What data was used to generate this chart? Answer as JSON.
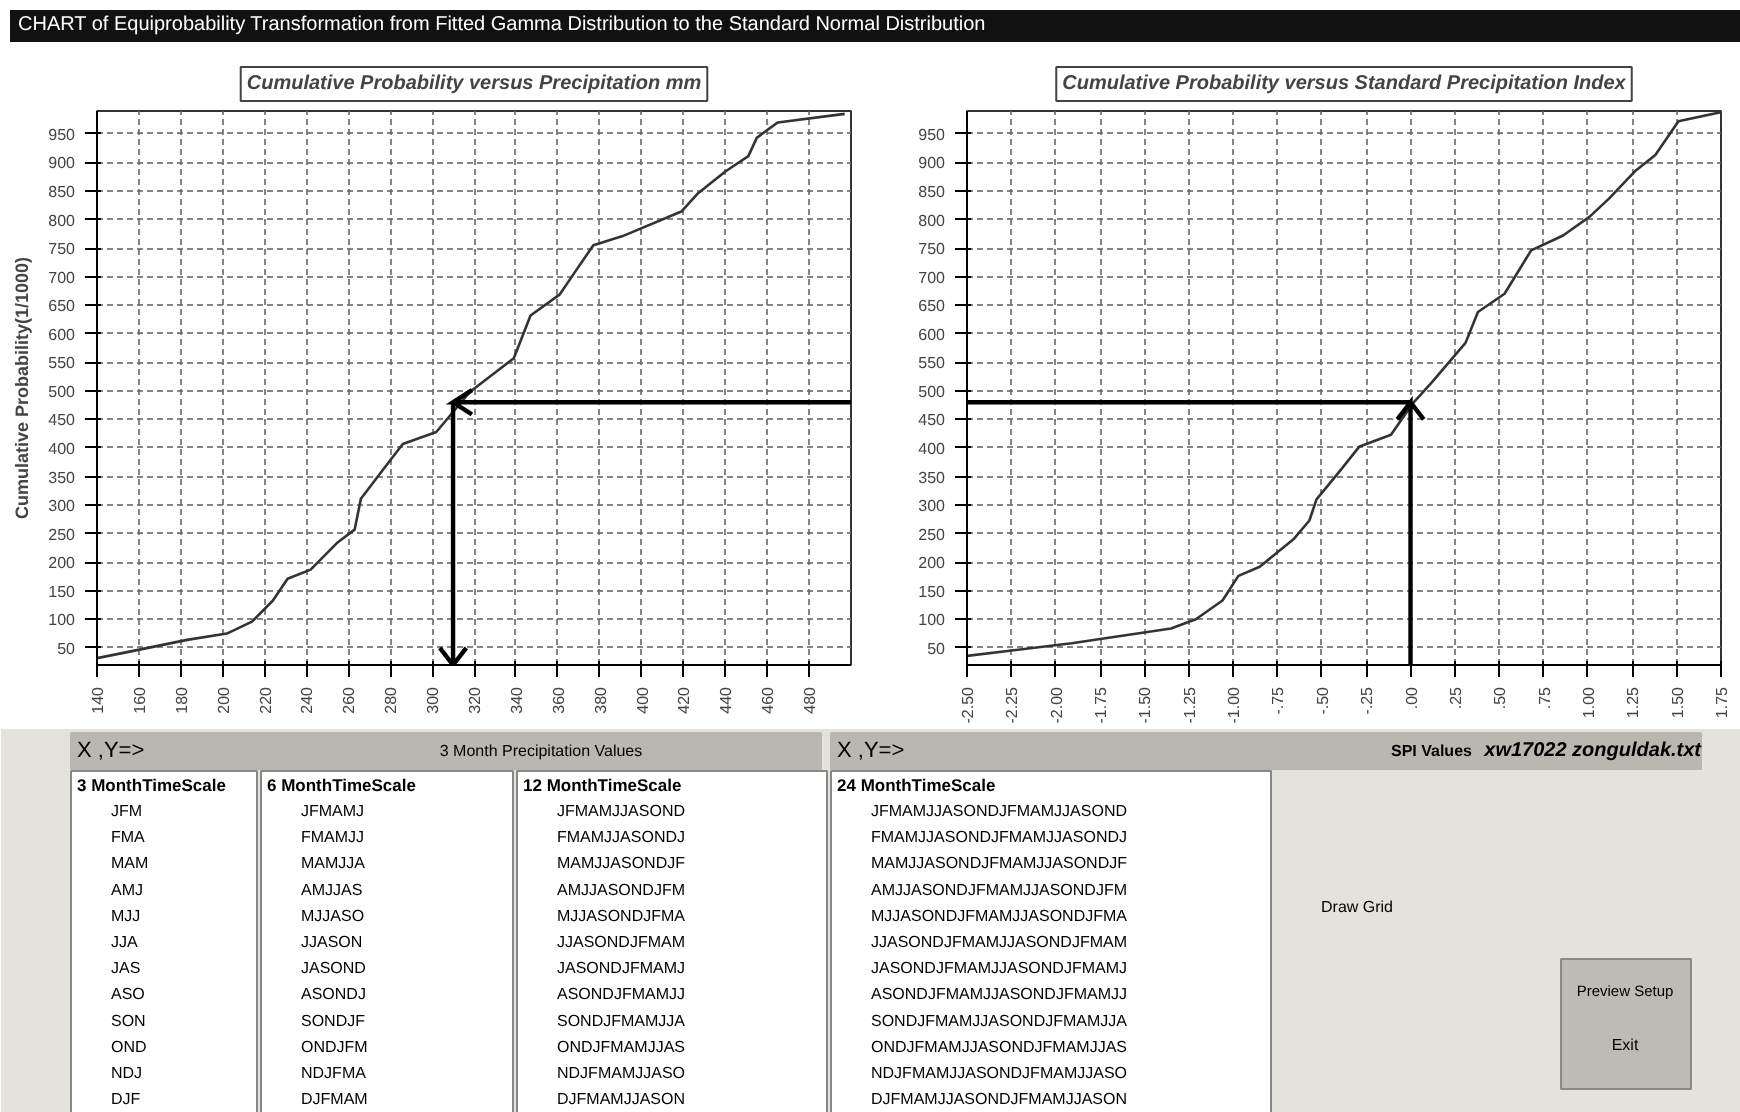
{
  "chart_data": [
    {
      "type": "line",
      "title": "CHART of Equiprobability Transformation from Fitted Gamma Distribution to the Standard Normal Distribution",
      "subtitle": "Cumulative Probability versus Precipitation mm",
      "ylabel": "Cumulative Probability(1/1000)",
      "color": "#333333",
      "grid": true,
      "x": [
        140,
        155,
        183,
        202,
        214,
        224,
        231,
        242,
        255,
        263,
        266,
        277,
        286,
        302,
        318,
        339,
        347,
        361,
        368,
        377,
        391,
        419,
        427,
        440,
        451,
        455,
        465,
        497
      ],
      "values": [
        32,
        43,
        64,
        75,
        96,
        133,
        171,
        187,
        235,
        257,
        311,
        364,
        407,
        428,
        498,
        557,
        632,
        669,
        707,
        755,
        771,
        814,
        846,
        884,
        911,
        943,
        970,
        985
      ],
      "xlim": [
        140,
        500
      ],
      "ylim": [
        20,
        990
      ],
      "xticks": [
        140,
        160,
        180,
        200,
        220,
        240,
        260,
        280,
        300,
        320,
        340,
        360,
        380,
        400,
        420,
        440,
        460,
        480
      ],
      "yticks": [
        50,
        100,
        150,
        200,
        250,
        300,
        350,
        400,
        450,
        500,
        550,
        600,
        650,
        700,
        750,
        800,
        850,
        900,
        950
      ],
      "ref_lines": [
        {
          "axis": "y",
          "value": 480
        },
        {
          "axis": "x",
          "value": 310
        }
      ]
    },
    {
      "type": "line",
      "title": "Cumulative Probability versus Standard Precipitation Index",
      "color": "#333333",
      "grid": true,
      "x": [
        -2.5,
        -1.91,
        -1.35,
        -1.21,
        -1.06,
        -0.97,
        -0.85,
        -0.66,
        -0.57,
        -0.53,
        -0.4,
        -0.29,
        -0.11,
        0.01,
        0.12,
        0.31,
        0.38,
        0.53,
        0.68,
        0.86,
        1.01,
        1.12,
        1.27,
        1.38,
        1.51,
        1.75
      ],
      "values": [
        36,
        58,
        84,
        100,
        133,
        176,
        192,
        240,
        273,
        310,
        359,
        402,
        423,
        477,
        515,
        584,
        638,
        670,
        746,
        772,
        805,
        837,
        886,
        913,
        972,
        988
      ],
      "xlim": [
        -2.5,
        1.75
      ],
      "ylim": [
        20,
        990
      ],
      "xticks": [
        {
          "value": -2.5,
          "label": "-2.50"
        },
        {
          "value": -2.25,
          "label": "-2.25"
        },
        {
          "value": -2.0,
          "label": "-2.00"
        },
        {
          "value": -1.75,
          "label": "-1.75"
        },
        {
          "value": -1.5,
          "label": "-1.50"
        },
        {
          "value": -1.25,
          "label": "-1.25"
        },
        {
          "value": -1.0,
          "label": "-1.00"
        },
        {
          "value": -0.75,
          "label": "-.75"
        },
        {
          "value": -0.5,
          "label": "-.50"
        },
        {
          "value": -0.25,
          "label": "-.25"
        },
        {
          "value": 0,
          "label": ".00"
        },
        {
          "value": 0.25,
          "label": ".25"
        },
        {
          "value": 0.5,
          "label": ".50"
        },
        {
          "value": 0.75,
          "label": ".75"
        },
        {
          "value": 1.0,
          "label": "1.00"
        },
        {
          "value": 1.25,
          "label": "1.25"
        },
        {
          "value": 1.5,
          "label": "1.50"
        },
        {
          "value": 1.75,
          "label": "1.75"
        }
      ],
      "yticks": [
        50,
        100,
        150,
        200,
        250,
        300,
        350,
        400,
        450,
        500,
        550,
        600,
        650,
        700,
        750,
        800,
        850,
        900,
        950
      ],
      "ref_lines": [
        {
          "axis": "y",
          "value": 480
        },
        {
          "axis": "x",
          "value": 0
        }
      ]
    },
    {
      "type": "other",
      "annotations": [
        "X ,Y=>",
        "3 Month Precipitation Values",
        "X ,Y=>",
        "SPI Values",
        "xw17022 zonguldak.txt",
        "3 MonthTimeScale",
        "JFM",
        "FMA",
        "MAM",
        "AMJ",
        "MJJ",
        "JJA",
        "JAS",
        "ASO",
        "SON",
        "OND",
        "NDJ",
        "DJF",
        "6 MonthTimeScale",
        "JFMAMJ",
        "FMAMJJ",
        "MAMJJA",
        "AMJJAS",
        "MJJASO",
        "JJASON",
        "JASOND",
        "ASONDJ",
        "SONDJF",
        "ONDJFM",
        "NDJFMA",
        "DJFMAM",
        "12 MonthTimeScale",
        "JFMAMJJASOND",
        "FMAMJJASONDJ",
        "MAMJJASONDJF",
        "AMJJASONDJFM",
        "MJJASONDJFMA",
        "JJASONDJFMAM",
        "JASONDJFMAMJ",
        "ASONDJFMAMJJ",
        "SONDJFMAMJJA",
        "ONDJFMAMJJAS",
        "NDJFMAMJJASO",
        "DJFMAMJJASON",
        "24 MonthTimeScale",
        "JFMAMJJASONDJFMAMJJASOND",
        "FMAMJJASONDJFMAMJJASONDJ",
        "MAMJJASONDJFMAMJJASONDJF",
        "AMJJASONDJFMAMJJASONDJFM",
        "MJJASONDJFMAMJJASONDJFMA",
        "JJASONDJFMAMJJASONDJFMAM",
        "JASONDJFMAMJJASONDJFMAMJ",
        "ASONDJFMAMJJASONDJFMAMJJ",
        "SONDJFMAMJJASONDJFMAMJJA",
        "ONDJFMAMJJASONDJFMAMJJAS",
        "NDJFMAMJJASONDJFMAMJJASO",
        "DJFMAMJJASONDJFMAMJJASON",
        "Draw Grid",
        "Preview Setup",
        "Exit"
      ]
    }
  ]
}
